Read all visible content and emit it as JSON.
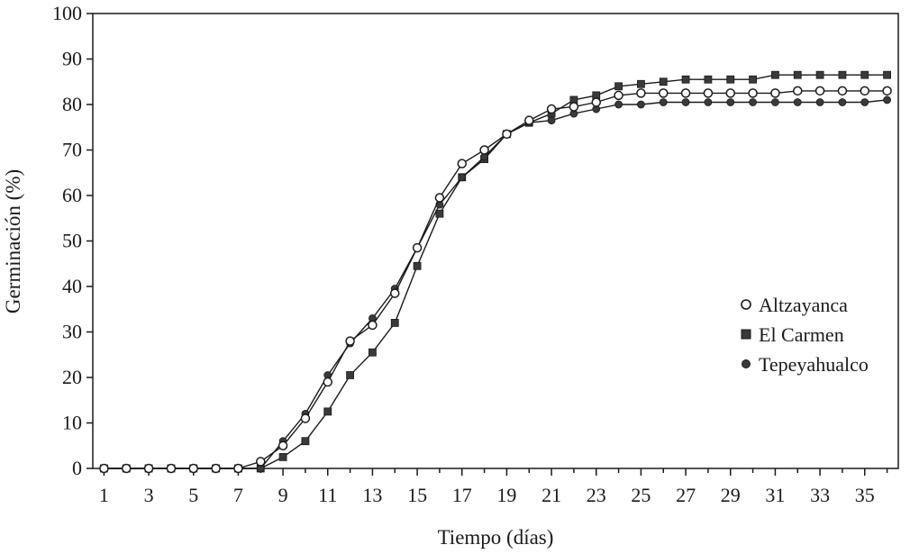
{
  "chart_data": {
    "type": "line",
    "xlabel": "Tiempo (días)",
    "ylabel": "Germinación (%)",
    "xlim": [
      0.5,
      36.5
    ],
    "ylim": [
      0,
      100
    ],
    "xticks": [
      1,
      3,
      5,
      7,
      9,
      11,
      13,
      15,
      17,
      19,
      21,
      23,
      25,
      27,
      29,
      31,
      33,
      35
    ],
    "yticks": [
      0,
      10,
      20,
      30,
      40,
      50,
      60,
      70,
      80,
      90,
      100
    ],
    "grid": false,
    "legend_position": "right",
    "x": [
      1,
      2,
      3,
      4,
      5,
      6,
      7,
      8,
      9,
      10,
      11,
      12,
      13,
      14,
      15,
      16,
      17,
      18,
      19,
      20,
      21,
      22,
      23,
      24,
      25,
      26,
      27,
      28,
      29,
      30,
      31,
      32,
      33,
      34,
      35,
      36
    ],
    "series": [
      {
        "name": "Altzayanca",
        "marker": "open-circle",
        "values": [
          0,
          0,
          0,
          0,
          0,
          0,
          0,
          1.5,
          5,
          11,
          19,
          28,
          31.5,
          38.5,
          48.5,
          59.5,
          67,
          70,
          73.5,
          76.5,
          79,
          79.5,
          80.5,
          82,
          82.5,
          82.5,
          82.5,
          82.5,
          82.5,
          82.5,
          82.5,
          83,
          83,
          83,
          83,
          83
        ]
      },
      {
        "name": "El Carmen",
        "marker": "filled-square",
        "values": [
          0,
          0,
          0,
          0,
          0,
          0,
          0,
          0,
          2.5,
          6,
          12.5,
          20.5,
          25.5,
          32,
          44.5,
          56,
          64,
          68,
          73.5,
          76,
          78,
          81,
          82,
          84,
          84.5,
          85,
          85.5,
          85.5,
          85.5,
          85.5,
          86.5,
          86.5,
          86.5,
          86.5,
          86.5,
          86.5
        ]
      },
      {
        "name": "Tepeyahualco",
        "marker": "filled-circle",
        "values": [
          0,
          0,
          0,
          0,
          0,
          0,
          0,
          0,
          6,
          12,
          20.5,
          27.5,
          33,
          39.5,
          48.5,
          58,
          64,
          68.5,
          73.5,
          76,
          76.5,
          78,
          79,
          80,
          80,
          80.5,
          80.5,
          80.5,
          80.5,
          80.5,
          80.5,
          80.5,
          80.5,
          80.5,
          80.5,
          81
        ]
      }
    ]
  },
  "colors": {
    "line": "#1a1a1a",
    "marker_fill_filled": "#3a3a3a",
    "marker_fill_open": "#ffffff",
    "background": "#ffffff"
  }
}
